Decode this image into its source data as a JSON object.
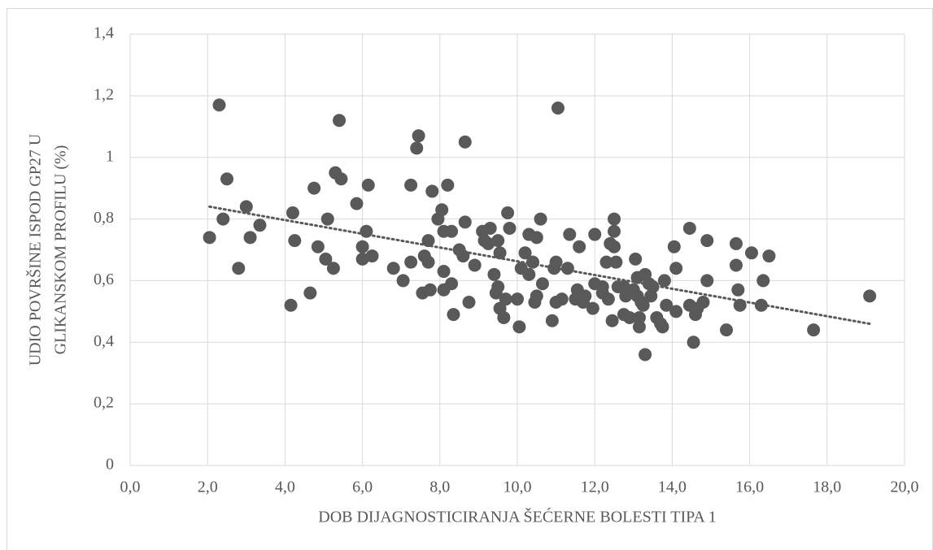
{
  "chart_data": {
    "type": "scatter",
    "x_label": "DOB DIJAGNOSTICIRANJA ŠEĆERNE BOLESTI TIPA 1",
    "y_label": [
      "UDIO POVRŠINE ISPOD GP27 U",
      "GLIKANSKOM PROFILU (%)"
    ],
    "xlim": [
      0,
      20
    ],
    "ylim": [
      0,
      1.4
    ],
    "xticks": [
      {
        "value": 0,
        "label": "0,0"
      },
      {
        "value": 2,
        "label": "2,0"
      },
      {
        "value": 4,
        "label": "4,0"
      },
      {
        "value": 6,
        "label": "6,0"
      },
      {
        "value": 8,
        "label": "8,0"
      },
      {
        "value": 10,
        "label": "10,0"
      },
      {
        "value": 12,
        "label": "12,0"
      },
      {
        "value": 14,
        "label": "14,0"
      },
      {
        "value": 16,
        "label": "16,0"
      },
      {
        "value": 18,
        "label": "18,0"
      },
      {
        "value": 20,
        "label": "20,0"
      }
    ],
    "yticks": [
      0,
      {
        "value": 0.2,
        "label": "0,2"
      },
      {
        "value": 0.4,
        "label": "0,4"
      },
      {
        "value": 0.6,
        "label": "0,6"
      },
      {
        "value": 0.8,
        "label": "0,8"
      },
      1,
      {
        "value": 1.2,
        "label": "1,2"
      },
      {
        "value": 1.4,
        "label": "1,4"
      }
    ],
    "grid": true,
    "color": "#595959",
    "x": [
      2.05,
      2.3,
      2.4,
      2.5,
      2.8,
      3.0,
      3.1,
      3.35,
      4.15,
      4.2,
      4.25,
      4.65,
      4.75,
      4.85,
      5.05,
      5.1,
      5.25,
      5.3,
      5.4,
      5.45,
      5.85,
      6.0,
      6.0,
      6.1,
      6.15,
      6.25,
      6.8,
      7.05,
      7.25,
      7.25,
      7.4,
      7.45,
      7.55,
      7.6,
      7.7,
      7.7,
      7.75,
      7.8,
      7.95,
      8.05,
      8.1,
      8.1,
      8.1,
      8.2,
      8.3,
      8.3,
      8.35,
      8.5,
      8.6,
      8.65,
      8.65,
      8.75,
      8.9,
      9.1,
      9.15,
      9.25,
      9.3,
      9.4,
      9.45,
      9.5,
      9.5,
      9.55,
      9.55,
      9.65,
      9.7,
      9.75,
      9.8,
      10.0,
      10.05,
      10.1,
      10.2,
      10.3,
      10.3,
      10.4,
      10.45,
      10.5,
      10.5,
      10.6,
      10.65,
      10.9,
      10.95,
      11.0,
      11.0,
      11.05,
      11.15,
      11.3,
      11.35,
      11.5,
      11.55,
      11.6,
      11.7,
      11.75,
      11.95,
      12.0,
      12.0,
      12.2,
      12.2,
      12.3,
      12.35,
      12.4,
      12.45,
      12.5,
      12.5,
      12.5,
      12.55,
      12.6,
      12.75,
      12.75,
      12.8,
      12.9,
      13.0,
      13.05,
      13.1,
      13.1,
      13.15,
      13.15,
      13.2,
      13.25,
      13.3,
      13.3,
      13.4,
      13.45,
      13.5,
      13.6,
      13.7,
      13.75,
      13.8,
      13.85,
      14.05,
      14.1,
      14.1,
      14.45,
      14.45,
      14.55,
      14.6,
      14.65,
      14.8,
      14.9,
      14.9,
      15.4,
      15.65,
      15.65,
      15.7,
      15.75,
      16.05,
      16.3,
      16.35,
      16.5,
      17.65,
      19.1
    ],
    "values": [
      0.74,
      1.17,
      0.8,
      0.93,
      0.64,
      0.84,
      0.74,
      0.78,
      0.52,
      0.82,
      0.73,
      0.56,
      0.9,
      0.71,
      0.67,
      0.8,
      0.64,
      0.95,
      1.12,
      0.93,
      0.85,
      0.71,
      0.67,
      0.76,
      0.91,
      0.68,
      0.64,
      0.6,
      0.91,
      0.66,
      1.03,
      1.07,
      0.56,
      0.68,
      0.66,
      0.73,
      0.57,
      0.89,
      0.8,
      0.83,
      0.76,
      0.63,
      0.57,
      0.91,
      0.59,
      0.76,
      0.49,
      0.7,
      0.68,
      0.79,
      1.05,
      0.53,
      0.65,
      0.76,
      0.73,
      0.72,
      0.77,
      0.62,
      0.56,
      0.58,
      0.73,
      0.69,
      0.51,
      0.48,
      0.54,
      0.82,
      0.77,
      0.54,
      0.45,
      0.64,
      0.69,
      0.62,
      0.75,
      0.66,
      0.53,
      0.55,
      0.74,
      0.8,
      0.59,
      0.47,
      0.64,
      0.66,
      0.53,
      1.16,
      0.54,
      0.64,
      0.75,
      0.54,
      0.57,
      0.71,
      0.53,
      0.55,
      0.51,
      0.59,
      0.75,
      0.58,
      0.56,
      0.66,
      0.54,
      0.72,
      0.47,
      0.71,
      0.8,
      0.76,
      0.66,
      0.58,
      0.49,
      0.58,
      0.55,
      0.48,
      0.57,
      0.67,
      0.61,
      0.55,
      0.45,
      0.48,
      0.53,
      0.52,
      0.62,
      0.36,
      0.59,
      0.55,
      0.58,
      0.48,
      0.46,
      0.45,
      0.6,
      0.52,
      0.71,
      0.64,
      0.5,
      0.77,
      0.52,
      0.4,
      0.49,
      0.51,
      0.53,
      0.6,
      0.73,
      0.44,
      0.72,
      0.65,
      0.57,
      0.52,
      0.69,
      0.52,
      0.6,
      0.68,
      0.44,
      0.55
    ],
    "trendline": {
      "x": [
        2.05,
        19.1
      ],
      "values": [
        0.84,
        0.46
      ],
      "color": "#595959",
      "style": "dotted"
    }
  }
}
